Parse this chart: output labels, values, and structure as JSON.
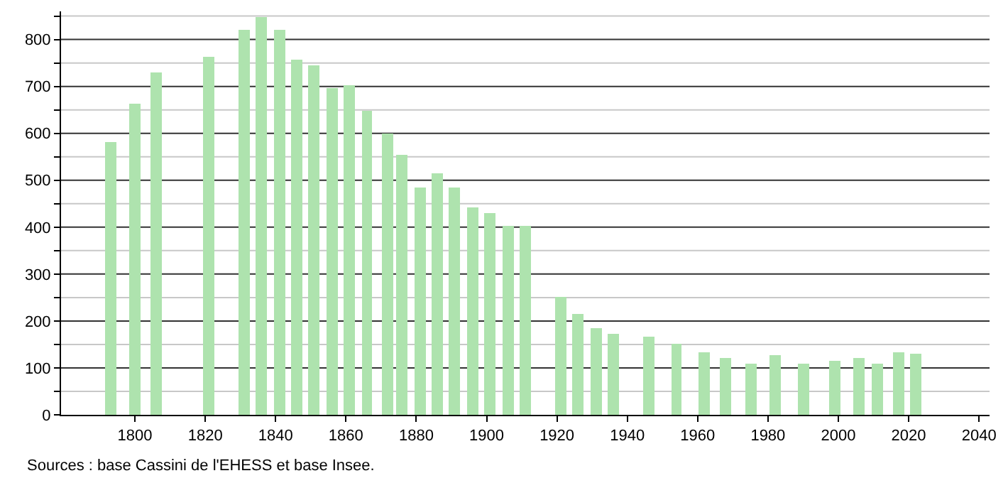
{
  "chart_data": {
    "type": "bar",
    "x": [
      1793,
      1800,
      1806,
      1821,
      1831,
      1836,
      1841,
      1846,
      1851,
      1856,
      1861,
      1866,
      1872,
      1876,
      1881,
      1886,
      1891,
      1896,
      1901,
      1906,
      1911,
      1921,
      1926,
      1931,
      1936,
      1946,
      1954,
      1962,
      1968,
      1975,
      1982,
      1990,
      1999,
      2006,
      2011,
      2017,
      2022
    ],
    "values": [
      580,
      662,
      730,
      762,
      820,
      848,
      820,
      756,
      745,
      698,
      704,
      648,
      600,
      555,
      484,
      515,
      485,
      442,
      430,
      402,
      403,
      250,
      216,
      184,
      172,
      167,
      150,
      133,
      121,
      108,
      126,
      109,
      114,
      122,
      110,
      134,
      129
    ],
    "color": "#aee3ae",
    "xlim": [
      1779,
      2043
    ],
    "xticks": [
      1800,
      1820,
      1840,
      1860,
      1880,
      1900,
      1920,
      1940,
      1960,
      1980,
      2000,
      2020,
      2040
    ],
    "ylim": [
      0,
      860
    ],
    "yticks": [
      0,
      {
        "value": 50,
        "label": null
      },
      100,
      {
        "value": 150,
        "label": null
      },
      200,
      {
        "value": 250,
        "label": null
      },
      300,
      {
        "value": 350,
        "label": null
      },
      400,
      {
        "value": 450,
        "label": null
      },
      500,
      {
        "value": 550,
        "label": null
      },
      600,
      {
        "value": 650,
        "label": null
      },
      700,
      {
        "value": 750,
        "label": null
      },
      800,
      {
        "value": 850,
        "label": null
      }
    ],
    "grid": "y",
    "annotations": [
      "Sources : base Cassini de l'EHESS et base Insee."
    ]
  }
}
